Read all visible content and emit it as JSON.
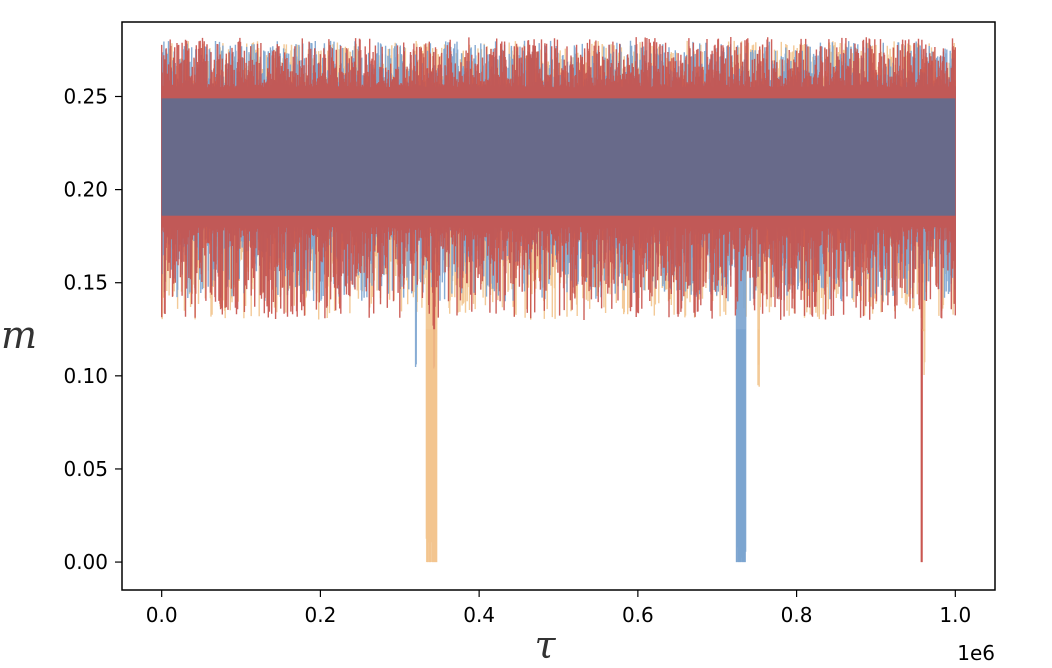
{
  "chart_data": {
    "type": "line",
    "title": "",
    "xlabel": "τ",
    "ylabel": "m",
    "x_offset_label": "1e6",
    "xlim": [
      -0.05,
      1.05
    ],
    "ylim": [
      -0.015,
      0.29
    ],
    "xticks": [
      0.0,
      0.2,
      0.4,
      0.6,
      0.8,
      1.0
    ],
    "xtick_labels": [
      "0.0",
      "0.2",
      "0.4",
      "0.6",
      "0.8",
      "1.0"
    ],
    "yticks": [
      0.0,
      0.05,
      0.1,
      0.15,
      0.2,
      0.25
    ],
    "ytick_labels": [
      "0.00",
      "0.05",
      "0.10",
      "0.15",
      "0.20",
      "0.25"
    ],
    "grid": false,
    "legend": "none",
    "band": {
      "x_start": 0.0,
      "x_end": 1.0,
      "low": 0.18,
      "high": 0.255,
      "color": "#646b8c"
    },
    "series": [
      {
        "color": "#f2c48d",
        "noise_low": 0.13,
        "noise_high": 0.28,
        "drops": [
          {
            "x_start": 0.333,
            "x_end": 0.347,
            "min": 0.0
          },
          {
            "x_start": 0.751,
            "x_end": 0.753,
            "min": 0.106
          },
          {
            "x_start": 0.958,
            "x_end": 0.962,
            "min": 0.124
          }
        ]
      },
      {
        "color": "#7aa3cf",
        "noise_low": 0.14,
        "noise_high": 0.28,
        "drops": [
          {
            "x_start": 0.724,
            "x_end": 0.736,
            "min": 0.0
          },
          {
            "x_start": 0.32,
            "x_end": 0.322,
            "min": 0.14
          }
        ]
      },
      {
        "color": "#c8514a",
        "noise_low": 0.13,
        "noise_high": 0.282,
        "drops": [
          {
            "x_start": 0.957,
            "x_end": 0.958,
            "min": 0.0
          },
          {
            "x_start": 0.342,
            "x_end": 0.344,
            "min": 0.127
          }
        ]
      }
    ]
  }
}
